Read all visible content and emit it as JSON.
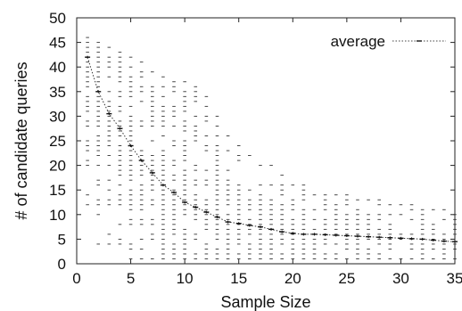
{
  "chart_data": {
    "type": "scatter",
    "title": "",
    "xlabel": "Sample Size",
    "ylabel": "# of candidate queries",
    "xlim": [
      0,
      35
    ],
    "ylim": [
      0,
      50
    ],
    "xticks": [
      "0",
      "5",
      "10",
      "15",
      "20",
      "25",
      "30",
      "35"
    ],
    "yticks": [
      "0",
      "5",
      "10",
      "15",
      "20",
      "25",
      "30",
      "35",
      "40",
      "45",
      "50"
    ],
    "grid": false,
    "legend_position": "top-right",
    "series": [
      {
        "name": "average",
        "style": "dotted line with markers",
        "x": [
          1,
          2,
          3,
          4,
          5,
          6,
          7,
          8,
          9,
          10,
          11,
          12,
          13,
          14,
          15,
          16,
          17,
          18,
          19,
          20,
          21,
          22,
          23,
          24,
          25,
          26,
          27,
          28,
          29,
          30,
          31,
          32,
          33,
          34,
          35
        ],
        "y": [
          42,
          35,
          30.5,
          27.5,
          24,
          21,
          18.5,
          16,
          14.5,
          12.5,
          11.5,
          10.5,
          9.5,
          8.5,
          8.2,
          7.8,
          7.5,
          7,
          6.5,
          6.2,
          6,
          6,
          5.9,
          5.8,
          5.7,
          5.6,
          5.5,
          5.4,
          5.3,
          5.2,
          5.1,
          5,
          4.8,
          4.6,
          4.5
        ]
      },
      {
        "name": "",
        "style": "individual sample points",
        "x_range": [
          1,
          35
        ],
        "upper_envelope": [
          46,
          45,
          44,
          43,
          42,
          41,
          39,
          38,
          37,
          37,
          36,
          34,
          30,
          26,
          24,
          22,
          20,
          20,
          18,
          16,
          16,
          14,
          14,
          14,
          14,
          13,
          13,
          13,
          12,
          12,
          12,
          11,
          11,
          11,
          10
        ],
        "lower_envelope": [
          12,
          4,
          4,
          4,
          1,
          1,
          1,
          1,
          1,
          1,
          1,
          1,
          1,
          1,
          1,
          1,
          1,
          1,
          1,
          1,
          1,
          1,
          1,
          1,
          1,
          1,
          1,
          1,
          1,
          1,
          1,
          1,
          1,
          1,
          1
        ]
      }
    ]
  }
}
